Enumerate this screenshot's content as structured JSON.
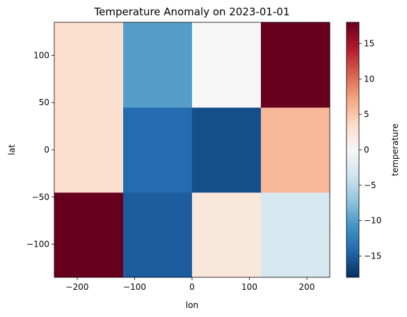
{
  "chart_data": {
    "type": "heatmap",
    "title": "Temperature Anomaly on 2023-01-01",
    "xlabel": "lon",
    "ylabel": "lat",
    "colorbar_label": "temperature",
    "colormap": "RdBu_r",
    "x_edges": [
      -240,
      -120,
      0,
      120,
      240
    ],
    "y_edges": [
      -135,
      -45,
      45,
      135
    ],
    "xlim": [
      -240,
      240
    ],
    "ylim": [
      -135,
      135
    ],
    "x_ticks": [
      -200,
      -100,
      0,
      100,
      200
    ],
    "x_tick_labels": [
      "−200",
      "−100",
      "0",
      "100",
      "200"
    ],
    "y_ticks": [
      -100,
      -50,
      0,
      50,
      100
    ],
    "y_tick_labels": [
      "−100",
      "−50",
      "0",
      "50",
      "100"
    ],
    "vmin": -18,
    "vmax": 18,
    "colorbar_ticks": [
      -15,
      -10,
      -5,
      0,
      5,
      10,
      15
    ],
    "colorbar_tick_labels": [
      "−15",
      "−10",
      "−5",
      "0",
      "5",
      "10",
      "15"
    ],
    "values": [
      [
        18,
        -15,
        2,
        -3
      ],
      [
        3,
        -14,
        -16,
        6
      ],
      [
        3,
        -10,
        0,
        18
      ]
    ]
  }
}
